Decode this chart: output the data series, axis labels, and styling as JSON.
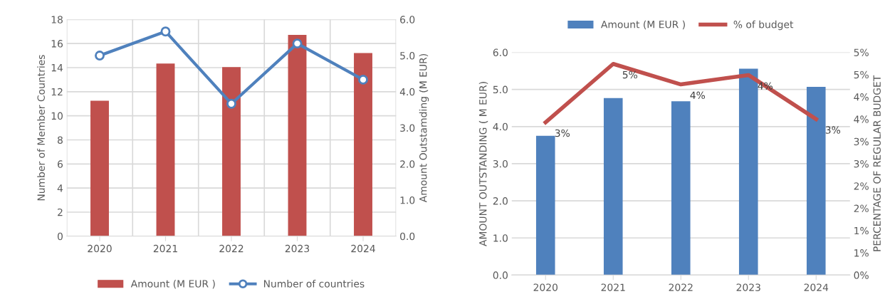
{
  "chart_data": [
    {
      "type": "bar",
      "categories": [
        "2020",
        "2021",
        "2022",
        "2023",
        "2024"
      ],
      "ylabel": "Number of Member Countries",
      "y2label": "Amount Outstamding (M EUR)",
      "ylim": [
        0,
        18
      ],
      "yticks": [
        0,
        2,
        4,
        6,
        8,
        10,
        12,
        14,
        16,
        18
      ],
      "y2lim": [
        0,
        6
      ],
      "y2ticks": [
        {
          "value": 0,
          "label": "0.0"
        },
        {
          "value": 1,
          "label": "1.0"
        },
        {
          "value": 2,
          "label": "2.0"
        },
        {
          "value": 3,
          "label": "3.0"
        },
        {
          "value": 4,
          "label": "4.0"
        },
        {
          "value": 5,
          "label": "5.0"
        },
        {
          "value": 6,
          "label": "6.0"
        }
      ],
      "series": [
        {
          "name": "Amount (M EUR )",
          "axis": "y2",
          "color": "#c0504d",
          "values": [
            3.75,
            4.78,
            4.68,
            5.57,
            5.07
          ]
        },
        {
          "name": "Number of countries",
          "type": "line",
          "axis": "y",
          "color": "#4f81bd",
          "marker": "circle",
          "values": [
            15,
            17,
            11,
            16,
            13
          ]
        }
      ],
      "grid": true,
      "legend": "bottom"
    },
    {
      "type": "bar",
      "categories": [
        "2020",
        "2021",
        "2022",
        "2023",
        "2024"
      ],
      "ylabel": "AMOUNT OUTSTANDING ( M EUR)",
      "y2label": "PERCENTAGE OF REGULAR BUDGET",
      "ylim": [
        0,
        6
      ],
      "yticks": [
        {
          "value": 0,
          "label": "0.0"
        },
        {
          "value": 1,
          "label": "1.0"
        },
        {
          "value": 2,
          "label": "2.0"
        },
        {
          "value": 3,
          "label": "3.0"
        },
        {
          "value": 4,
          "label": "4.0"
        },
        {
          "value": 5,
          "label": "5.0"
        },
        {
          "value": 6,
          "label": "6.0"
        }
      ],
      "y2lim": [
        0,
        5
      ],
      "y2ticks": [
        {
          "value": 0,
          "label": "0%"
        },
        {
          "value": 0.5,
          "label": "1%"
        },
        {
          "value": 1,
          "label": "1%"
        },
        {
          "value": 1.5,
          "label": "2%"
        },
        {
          "value": 2,
          "label": "2%"
        },
        {
          "value": 2.5,
          "label": "3%"
        },
        {
          "value": 3,
          "label": "3%"
        },
        {
          "value": 3.5,
          "label": "4%"
        },
        {
          "value": 4,
          "label": "4%"
        },
        {
          "value": 4.5,
          "label": "5%"
        },
        {
          "value": 5,
          "label": "5%"
        }
      ],
      "series": [
        {
          "name": "Amount (M EUR )",
          "axis": "y",
          "color": "#4f81bd",
          "values": [
            3.75,
            4.77,
            4.68,
            5.56,
            5.07
          ]
        },
        {
          "name": "% of budget",
          "type": "line",
          "axis": "y2",
          "color": "#c0504d",
          "values": [
            3.43,
            4.74,
            4.28,
            4.49,
            3.5
          ],
          "value_labels": [
            "3%",
            "5%",
            "4%",
            "4%",
            "3%"
          ]
        }
      ],
      "grid": "y",
      "legend": "top"
    }
  ]
}
